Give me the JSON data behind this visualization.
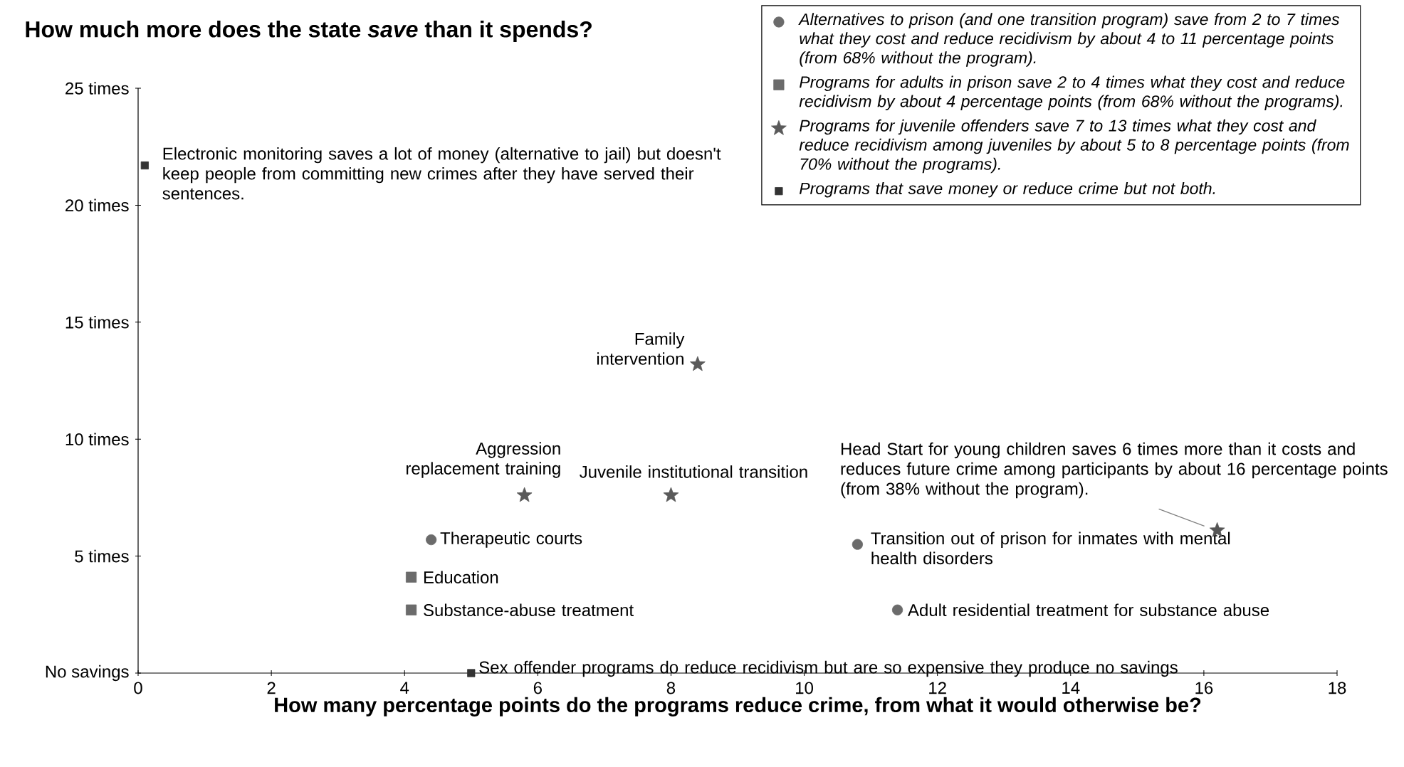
{
  "chart_data": {
    "type": "scatter",
    "title": "How much more does the state *save* than it spends?",
    "xlabel": "How many percentage points do the programs reduce crime, from what it would otherwise be?",
    "xlim": [
      0,
      18
    ],
    "xticks": [
      0,
      2,
      4,
      6,
      8,
      10,
      12,
      14,
      16,
      18
    ],
    "ylim": [
      0,
      25
    ],
    "yticks": [
      {
        "value": 0,
        "label": "No savings"
      },
      {
        "value": 5,
        "label": "5 times"
      },
      {
        "value": 10,
        "label": "10 times"
      },
      {
        "value": 15,
        "label": "15 times"
      },
      {
        "value": 20,
        "label": "20 times"
      },
      {
        "value": 25,
        "label": "25 times"
      }
    ],
    "legend": "top right",
    "series": [
      {
        "name": "Alternatives to prison (and one transition program) save from 2 to 7 times what they cost and reduce recidivism by about 4 to 11 percentage points (from 68% without the program).",
        "color": "#6b6b6b",
        "marker": "circle",
        "x": [
          4.4,
          10.8,
          11.4
        ],
        "values": [
          5.7,
          5.5,
          2.7
        ]
      },
      {
        "name": "Programs for adults in prison save 2 to 4 times what they cost and reduce recidivism by about 4 percentage points (from 68% without the programs).",
        "color": "#6b6b6b",
        "marker": "square",
        "x": [
          4.1,
          4.1
        ],
        "values": [
          4.1,
          2.7
        ]
      },
      {
        "name": "Programs for juvenile offenders save 7 to 13 times what they cost and reduce recidivism among juveniles by about 5 to 8 percentage points (from 70% without the programs).",
        "color": "#5a5a5a",
        "marker": "star",
        "x": [
          5.8,
          8.0,
          8.4
        ],
        "values": [
          7.6,
          7.6,
          13.2
        ]
      },
      {
        "name": "Programs that save money or reduce crime but not both.",
        "color": "#333333",
        "marker": "square",
        "x": [
          0.1,
          5.0
        ],
        "values": [
          21.7,
          0
        ]
      },
      {
        "color": "#555555",
        "marker": "star",
        "x": [
          16.2
        ],
        "values": [
          6.1
        ]
      }
    ],
    "annotations": [
      {
        "text": "Electronic monitoring saves a lot of money (alternative to jail) but doesn't keep people from committing new crimes after they have served their sentences.",
        "x": 0.1,
        "y": 21.7
      },
      {
        "text": "Family intervention",
        "x": 8.4,
        "y": 13.2
      },
      {
        "text": "Aggression replacement training",
        "x": 5.8,
        "y": 7.6
      },
      {
        "text": "Juvenile institutional transition",
        "x": 8.0,
        "y": 7.6
      },
      {
        "text": "Therapeutic courts",
        "x": 4.4,
        "y": 5.7
      },
      {
        "text": "Education",
        "x": 4.1,
        "y": 4.1
      },
      {
        "text": "Substance-abuse treatment",
        "x": 4.1,
        "y": 2.7
      },
      {
        "text": "Sex offender programs do reduce recidivism but are so expensive they produce no savings",
        "x": 5.0,
        "y": 0
      },
      {
        "text": "Transition out of prison for inmates with mental health disorders",
        "x": 10.8,
        "y": 5.5
      },
      {
        "text": "Adult residential treatment for substance abuse",
        "x": 11.4,
        "y": 2.7
      },
      {
        "text": "Head Start for young children saves 6 times more than it costs and reduces future crime among participants by about 16 percentage points (from 38% without the program).",
        "x": 16.2,
        "y": 6.1
      }
    ]
  }
}
